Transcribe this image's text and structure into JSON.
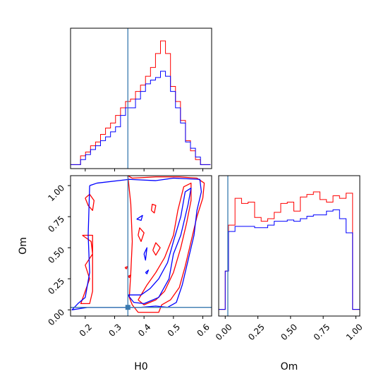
{
  "chart_data": {
    "type": "corner",
    "parameters": [
      "H0",
      "Om"
    ],
    "colors": {
      "red": "#ff0000",
      "blue": "#0000ff",
      "truth": "#3a7ab0"
    },
    "truth": {
      "H0": 0.345,
      "Om": 0.02
    },
    "panels": [
      {
        "id": "hist_H0",
        "type": "histogram",
        "xlim": [
          0.15,
          0.63
        ],
        "xticks": [
          0.2,
          0.3,
          0.4,
          0.5,
          0.6
        ],
        "ylim": [
          0,
          1.0
        ],
        "bin_edges": [
          0.15,
          0.167,
          0.184,
          0.201,
          0.218,
          0.235,
          0.252,
          0.269,
          0.286,
          0.303,
          0.32,
          0.337,
          0.354,
          0.371,
          0.388,
          0.405,
          0.422,
          0.439,
          0.456,
          0.473,
          0.49,
          0.507,
          0.524,
          0.541,
          0.558,
          0.575,
          0.592,
          0.609,
          0.626
        ],
        "series": [
          {
            "name": "red",
            "color": "#ff0000",
            "counts": [
              0.02,
              0.02,
              0.09,
              0.12,
              0.17,
              0.2,
              0.26,
              0.31,
              0.35,
              0.41,
              0.47,
              0.52,
              0.54,
              0.6,
              0.65,
              0.72,
              0.79,
              0.9,
              1.0,
              0.9,
              0.64,
              0.52,
              0.37,
              0.21,
              0.13,
              0.06,
              0.02,
              0.02
            ]
          },
          {
            "name": "blue",
            "color": "#0000ff",
            "counts": [
              0.02,
              0.02,
              0.06,
              0.1,
              0.14,
              0.17,
              0.21,
              0.24,
              0.28,
              0.32,
              0.41,
              0.47,
              0.47,
              0.54,
              0.6,
              0.66,
              0.69,
              0.71,
              0.76,
              0.72,
              0.6,
              0.47,
              0.35,
              0.2,
              0.15,
              0.08,
              0.02,
              0.02
            ]
          }
        ]
      },
      {
        "id": "contour_H0_Om",
        "type": "contour",
        "xlabel": "H0",
        "ylabel": "Om",
        "xlim": [
          0.15,
          0.63
        ],
        "ylim": [
          -0.05,
          1.08
        ],
        "xticks": [
          0.2,
          0.3,
          0.4,
          0.5,
          0.6
        ],
        "yticks": [
          0.0,
          0.25,
          0.5,
          0.75,
          1.0
        ],
        "ytick_labels": [
          "0.00",
          "0.25",
          "0.50",
          "0.75",
          "1.00"
        ],
        "series": [
          {
            "name": "red",
            "color": "#ff0000",
            "contours": [
              [
                [
                  0.345,
                  1.08
                ],
                [
                  0.36,
                  1.06
                ],
                [
                  0.44,
                  1.07
                ],
                [
                  0.52,
                  1.07
                ],
                [
                  0.58,
                  1.06
                ],
                [
                  0.605,
                  1.02
                ],
                [
                  0.6,
                  0.9
                ],
                [
                  0.58,
                  0.75
                ],
                [
                  0.56,
                  0.55
                ],
                [
                  0.54,
                  0.35
                ],
                [
                  0.52,
                  0.18
                ],
                [
                  0.49,
                  0.08
                ],
                [
                  0.46,
                  0.04
                ],
                [
                  0.45,
                  -0.02
                ],
                [
                  0.38,
                  -0.02
                ],
                [
                  0.36,
                  0.04
                ],
                [
                  0.35,
                  0.1
                ],
                [
                  0.355,
                  0.3
                ],
                [
                  0.36,
                  0.55
                ],
                [
                  0.355,
                  0.85
                ],
                [
                  0.345,
                  1.08
                ]
              ],
              [
                [
                  0.38,
                  0.08
                ],
                [
                  0.4,
                  0.04
                ],
                [
                  0.44,
                  0.08
                ],
                [
                  0.47,
                  0.15
                ],
                [
                  0.5,
                  0.3
                ],
                [
                  0.525,
                  0.5
                ],
                [
                  0.545,
                  0.7
                ],
                [
                  0.56,
                  0.88
                ],
                [
                  0.56,
                  1.02
                ],
                [
                  0.535,
                  0.99
                ],
                [
                  0.515,
                  0.8
                ],
                [
                  0.5,
                  0.6
                ],
                [
                  0.47,
                  0.42
                ],
                [
                  0.44,
                  0.3
                ],
                [
                  0.41,
                  0.2
                ],
                [
                  0.38,
                  0.08
                ]
              ],
              [
                [
                  0.19,
                  0.6
                ],
                [
                  0.22,
                  0.55
                ],
                [
                  0.225,
                  0.45
                ],
                [
                  0.2,
                  0.36
                ],
                [
                  0.215,
                  0.25
                ],
                [
                  0.2,
                  0.15
                ],
                [
                  0.185,
                  0.05
                ],
                [
                  0.215,
                  0.05
                ],
                [
                  0.225,
                  0.15
                ],
                [
                  0.225,
                  0.6
                ],
                [
                  0.19,
                  0.6
                ]
              ],
              [
                [
                  0.2,
                  0.9
                ],
                [
                  0.21,
                  0.84
                ],
                [
                  0.225,
                  0.8
                ],
                [
                  0.23,
                  0.88
                ],
                [
                  0.215,
                  0.93
                ],
                [
                  0.2,
                  0.9
                ]
              ],
              [
                [
                  0.38,
                  0.6
                ],
                [
                  0.39,
                  0.55
                ],
                [
                  0.4,
                  0.62
                ],
                [
                  0.385,
                  0.66
                ],
                [
                  0.38,
                  0.6
                ]
              ],
              [
                [
                  0.43,
                  0.48
                ],
                [
                  0.44,
                  0.44
                ],
                [
                  0.455,
                  0.5
                ],
                [
                  0.44,
                  0.54
                ],
                [
                  0.43,
                  0.48
                ]
              ],
              [
                [
                  0.425,
                  0.8
                ],
                [
                  0.435,
                  0.78
                ],
                [
                  0.44,
                  0.84
                ],
                [
                  0.428,
                  0.85
                ],
                [
                  0.425,
                  0.8
                ]
              ],
              [
                [
                  0.335,
                  0.34
                ],
                [
                  0.34,
                  0.33
                ],
                [
                  0.345,
                  0.35
                ],
                [
                  0.335,
                  0.34
                ]
              ],
              [
                [
                  0.345,
                  0.27
                ],
                [
                  0.35,
                  0.26
                ],
                [
                  0.355,
                  0.28
                ],
                [
                  0.345,
                  0.27
                ]
              ]
            ]
          },
          {
            "name": "blue",
            "color": "#0000ff",
            "contours": [
              [
                [
                  0.215,
                  1.0
                ],
                [
                  0.24,
                  1.02
                ],
                [
                  0.35,
                  1.05
                ],
                [
                  0.44,
                  1.04
                ],
                [
                  0.5,
                  1.06
                ],
                [
                  0.59,
                  1.05
                ],
                [
                  0.595,
                  0.95
                ],
                [
                  0.58,
                  0.8
                ],
                [
                  0.57,
                  0.6
                ],
                [
                  0.55,
                  0.4
                ],
                [
                  0.53,
                  0.2
                ],
                [
                  0.51,
                  0.06
                ],
                [
                  0.48,
                  0.02
                ],
                [
                  0.44,
                  0.03
                ],
                [
                  0.39,
                  0.02
                ],
                [
                  0.34,
                  0.02
                ],
                [
                  0.3,
                  0.02
                ],
                [
                  0.25,
                  0.02
                ],
                [
                  0.21,
                  0.02
                ],
                [
                  0.155,
                  0.0
                ],
                [
                  0.175,
                  0.05
                ],
                [
                  0.2,
                  0.1
                ],
                [
                  0.215,
                  0.3
                ],
                [
                  0.21,
                  0.6
                ],
                [
                  0.215,
                  1.0
                ]
              ],
              [
                [
                  0.345,
                  0.12
                ],
                [
                  0.365,
                  0.06
                ],
                [
                  0.4,
                  0.05
                ],
                [
                  0.45,
                  0.1
                ],
                [
                  0.485,
                  0.25
                ],
                [
                  0.5,
                  0.45
                ],
                [
                  0.525,
                  0.6
                ],
                [
                  0.55,
                  0.85
                ],
                [
                  0.56,
                  0.98
                ],
                [
                  0.54,
                  0.95
                ],
                [
                  0.525,
                  0.75
                ],
                [
                  0.5,
                  0.55
                ],
                [
                  0.48,
                  0.38
                ],
                [
                  0.45,
                  0.25
                ],
                [
                  0.42,
                  0.17
                ],
                [
                  0.39,
                  0.12
                ],
                [
                  0.345,
                  0.12
                ]
              ],
              [
                [
                  0.4,
                  0.45
                ],
                [
                  0.405,
                  0.4
                ],
                [
                  0.41,
                  0.5
                ],
                [
                  0.4,
                  0.45
                ]
              ],
              [
                [
                  0.375,
                  0.73
                ],
                [
                  0.39,
                  0.72
                ],
                [
                  0.395,
                  0.76
                ],
                [
                  0.375,
                  0.73
                ]
              ],
              [
                [
                  0.405,
                  0.3
                ],
                [
                  0.41,
                  0.29
                ],
                [
                  0.415,
                  0.32
                ],
                [
                  0.405,
                  0.3
                ]
              ]
            ]
          }
        ]
      },
      {
        "id": "hist_Om",
        "type": "histogram",
        "xlabel": "Om",
        "xlim": [
          -0.05,
          1.03
        ],
        "xticks": [
          0.0,
          0.25,
          0.5,
          0.75,
          1.0
        ],
        "xtick_labels": [
          "0.00",
          "0.25",
          "0.50",
          "0.75",
          "1.00"
        ],
        "ylim": [
          0,
          1.0
        ],
        "bin_edges": [
          -0.05,
          0.0,
          0.025,
          0.075,
          0.125,
          0.175,
          0.225,
          0.275,
          0.325,
          0.375,
          0.425,
          0.475,
          0.525,
          0.575,
          0.625,
          0.675,
          0.725,
          0.775,
          0.825,
          0.875,
          0.925,
          0.975,
          1.03
        ],
        "series": [
          {
            "name": "red",
            "color": "#ff0000",
            "counts": [
              0.03,
              0.33,
              0.69,
              0.9,
              0.86,
              0.87,
              0.75,
              0.72,
              0.74,
              0.79,
              0.86,
              0.87,
              0.8,
              0.91,
              0.93,
              0.95,
              0.89,
              0.87,
              0.92,
              0.9,
              0.94,
              0.03
            ]
          },
          {
            "name": "blue",
            "color": "#0000ff",
            "counts": [
              0.03,
              0.33,
              0.64,
              0.68,
              0.68,
              0.68,
              0.67,
              0.67,
              0.69,
              0.72,
              0.72,
              0.73,
              0.72,
              0.74,
              0.76,
              0.77,
              0.77,
              0.8,
              0.81,
              0.74,
              0.63,
              0.03
            ]
          }
        ]
      }
    ]
  }
}
